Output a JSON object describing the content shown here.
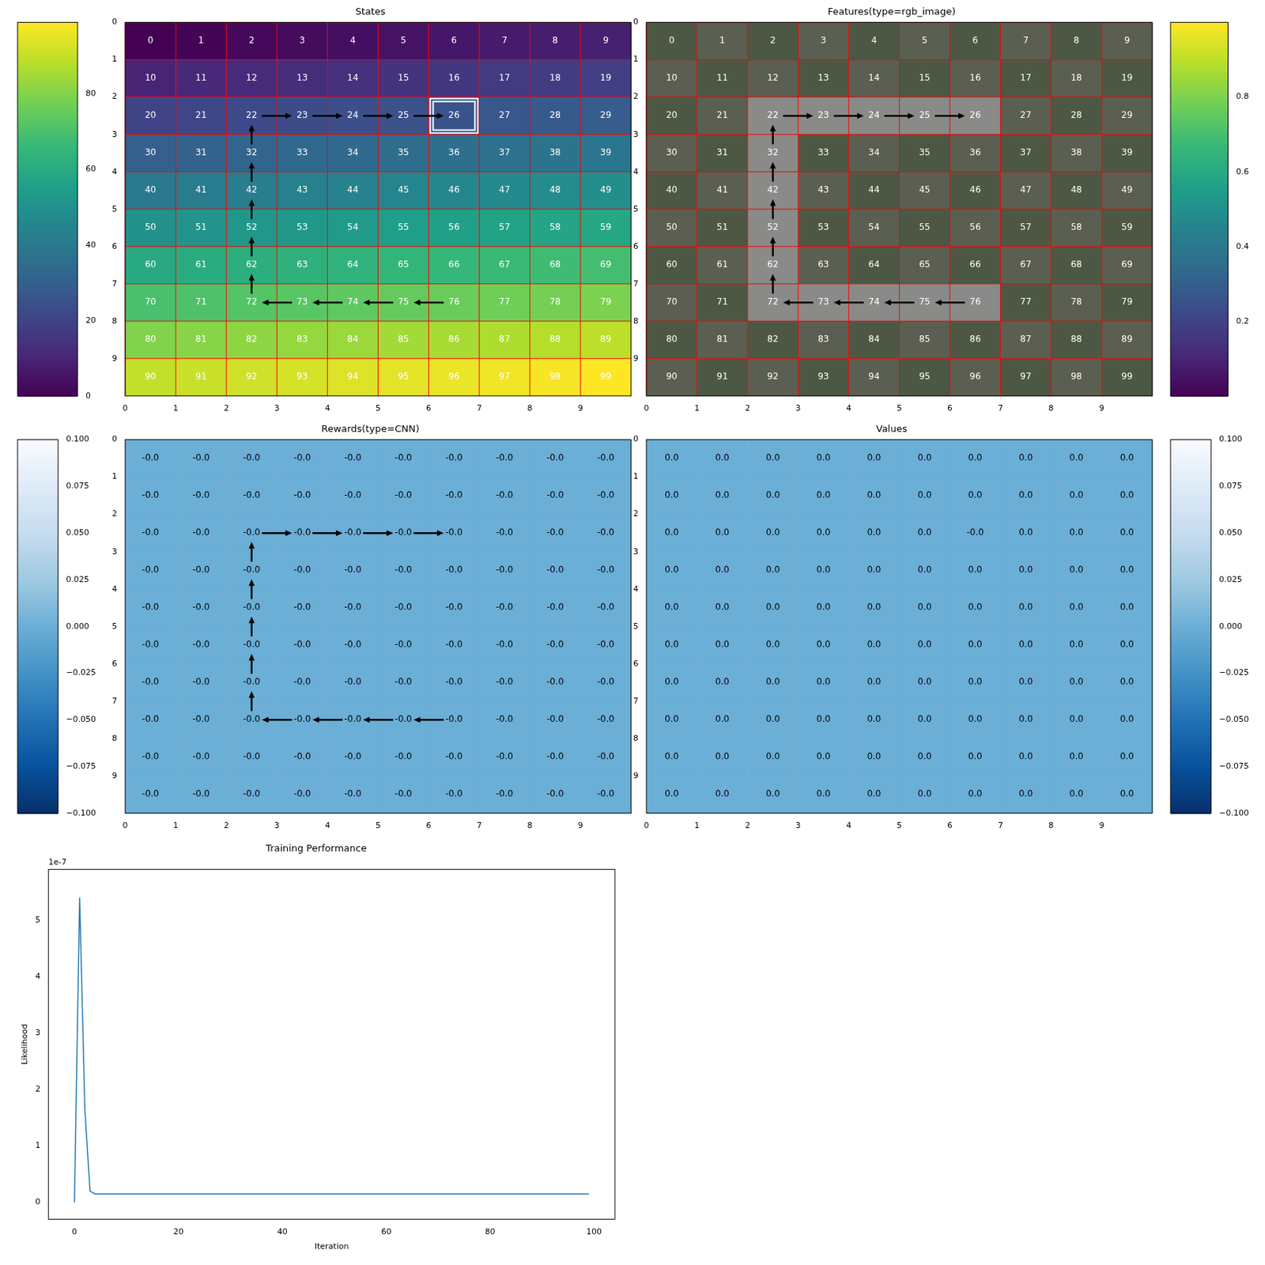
{
  "chart_data": [
    {
      "type": "heatmap",
      "title": "States",
      "color": "viridis",
      "cells": [
        [
          0,
          1,
          2,
          3,
          4,
          5,
          6,
          7,
          8,
          9
        ],
        [
          10,
          11,
          12,
          13,
          14,
          15,
          16,
          17,
          18,
          19
        ],
        [
          20,
          21,
          22,
          23,
          24,
          25,
          26,
          27,
          28,
          29
        ],
        [
          30,
          31,
          32,
          33,
          34,
          35,
          36,
          37,
          38,
          39
        ],
        [
          40,
          41,
          42,
          43,
          44,
          45,
          46,
          47,
          48,
          49
        ],
        [
          50,
          51,
          52,
          53,
          54,
          55,
          56,
          57,
          58,
          59
        ],
        [
          60,
          61,
          62,
          63,
          64,
          65,
          66,
          67,
          68,
          69
        ],
        [
          70,
          71,
          72,
          73,
          74,
          75,
          76,
          77,
          78,
          79
        ],
        [
          80,
          81,
          82,
          83,
          84,
          85,
          86,
          87,
          88,
          89
        ],
        [
          90,
          91,
          92,
          93,
          94,
          95,
          96,
          97,
          98,
          99
        ]
      ],
      "xlim": [
        0,
        10
      ],
      "ylim": [
        10,
        0
      ],
      "xticks": [
        0,
        1,
        2,
        3,
        4,
        5,
        6,
        7,
        8,
        9
      ],
      "yticks": [
        0,
        1,
        2,
        3,
        4,
        5,
        6,
        7,
        8,
        9
      ],
      "grid": true,
      "trajectory": [
        76,
        75,
        74,
        73,
        72,
        62,
        52,
        42,
        32,
        22,
        23,
        24,
        25,
        26
      ],
      "highlight": 26,
      "colorbar": {
        "range": [
          0,
          99
        ],
        "ticks": [
          0,
          20,
          40,
          60,
          80
        ]
      }
    },
    {
      "type": "image",
      "title": "Features(type=rgb_image)",
      "color": "viridis",
      "cell_labels": [
        [
          0,
          1,
          2,
          3,
          4,
          5,
          6,
          7,
          8,
          9
        ],
        [
          10,
          11,
          12,
          13,
          14,
          15,
          16,
          17,
          18,
          19
        ],
        [
          20,
          21,
          22,
          23,
          24,
          25,
          26,
          27,
          28,
          29
        ],
        [
          30,
          31,
          32,
          33,
          34,
          35,
          36,
          37,
          38,
          39
        ],
        [
          40,
          41,
          42,
          43,
          44,
          45,
          46,
          47,
          48,
          49
        ],
        [
          50,
          51,
          52,
          53,
          54,
          55,
          56,
          57,
          58,
          59
        ],
        [
          60,
          61,
          62,
          63,
          64,
          65,
          66,
          67,
          68,
          69
        ],
        [
          70,
          71,
          72,
          73,
          74,
          75,
          76,
          77,
          78,
          79
        ],
        [
          80,
          81,
          82,
          83,
          84,
          85,
          86,
          87,
          88,
          89
        ],
        [
          90,
          91,
          92,
          93,
          94,
          95,
          96,
          97,
          98,
          99
        ]
      ],
      "xlim": [
        0,
        10
      ],
      "ylim": [
        10,
        0
      ],
      "xticks": [
        0,
        1,
        2,
        3,
        4,
        5,
        6,
        7,
        8,
        9
      ],
      "yticks": [
        0,
        1,
        2,
        3,
        4,
        5,
        6,
        7,
        8,
        9
      ],
      "grid": true,
      "trajectory": [
        76,
        75,
        74,
        73,
        72,
        62,
        52,
        42,
        32,
        22,
        23,
        24,
        25,
        26
      ],
      "colorbar": {
        "range": [
          0,
          1
        ],
        "ticks": [
          0.2,
          0.4,
          0.6,
          0.8
        ]
      }
    },
    {
      "type": "heatmap",
      "title": "Rewards(type=CNN)",
      "color": "Blues",
      "cells": [
        [
          0,
          0,
          0,
          0,
          0,
          0,
          0,
          0,
          0,
          0
        ],
        [
          0,
          0,
          0,
          0,
          0,
          0,
          0,
          0,
          0,
          0
        ],
        [
          0,
          0,
          0,
          0,
          0,
          0,
          0,
          0,
          0,
          0
        ],
        [
          0,
          0,
          0,
          0,
          0,
          0,
          0,
          0,
          0,
          0
        ],
        [
          0,
          0,
          0,
          0,
          0,
          0,
          0,
          0,
          0,
          0
        ],
        [
          0,
          0,
          0,
          0,
          0,
          0,
          0,
          0,
          0,
          0
        ],
        [
          0,
          0,
          0,
          0,
          0,
          0,
          0,
          0,
          0,
          0
        ],
        [
          0,
          0,
          0,
          0,
          0,
          0,
          0,
          0,
          0,
          0
        ],
        [
          0,
          0,
          0,
          0,
          0,
          0,
          0,
          0,
          0,
          0
        ],
        [
          0,
          0,
          0,
          0,
          0,
          0,
          0,
          0,
          0,
          0
        ]
      ],
      "cell_labels": [
        [
          "-0.0",
          "-0.0",
          "-0.0",
          "-0.0",
          "-0.0",
          "-0.0",
          "-0.0",
          "-0.0",
          "-0.0",
          "-0.0"
        ],
        [
          "-0.0",
          "-0.0",
          "-0.0",
          "-0.0",
          "-0.0",
          "-0.0",
          "-0.0",
          "-0.0",
          "-0.0",
          "-0.0"
        ],
        [
          "-0.0",
          "-0.0",
          "-0.0",
          "-0.0",
          "-0.0",
          "-0.0",
          "-0.0",
          "-0.0",
          "-0.0",
          "-0.0"
        ],
        [
          "-0.0",
          "-0.0",
          "-0.0",
          "-0.0",
          "-0.0",
          "-0.0",
          "-0.0",
          "-0.0",
          "-0.0",
          "-0.0"
        ],
        [
          "-0.0",
          "-0.0",
          "-0.0",
          "-0.0",
          "-0.0",
          "-0.0",
          "-0.0",
          "-0.0",
          "-0.0",
          "-0.0"
        ],
        [
          "-0.0",
          "-0.0",
          "-0.0",
          "-0.0",
          "-0.0",
          "-0.0",
          "-0.0",
          "-0.0",
          "-0.0",
          "-0.0"
        ],
        [
          "-0.0",
          "-0.0",
          "-0.0",
          "-0.0",
          "-0.0",
          "-0.0",
          "-0.0",
          "-0.0",
          "-0.0",
          "-0.0"
        ],
        [
          "-0.0",
          "-0.0",
          "-0.0",
          "-0.0",
          "-0.0",
          "-0.0",
          "-0.0",
          "-0.0",
          "-0.0",
          "-0.0"
        ],
        [
          "-0.0",
          "-0.0",
          "-0.0",
          "-0.0",
          "-0.0",
          "-0.0",
          "-0.0",
          "-0.0",
          "-0.0",
          "-0.0"
        ],
        [
          "-0.0",
          "-0.0",
          "-0.0",
          "-0.0",
          "-0.0",
          "-0.0",
          "-0.0",
          "-0.0",
          "-0.0",
          "-0.0"
        ]
      ],
      "xlim": [
        0,
        10
      ],
      "ylim": [
        10,
        0
      ],
      "xticks": [
        0,
        1,
        2,
        3,
        4,
        5,
        6,
        7,
        8,
        9
      ],
      "yticks": [
        0,
        1,
        2,
        3,
        4,
        5,
        6,
        7,
        8,
        9
      ],
      "grid": false,
      "trajectory": [
        76,
        75,
        74,
        73,
        72,
        62,
        52,
        42,
        32,
        22,
        23,
        24,
        25,
        26
      ],
      "colorbar": {
        "range": [
          -0.1,
          0.1
        ],
        "ticks": [
          {
            "value": -0.1,
            "label": "−0.100"
          },
          {
            "value": -0.075,
            "label": "−0.075"
          },
          {
            "value": -0.05,
            "label": "−0.050"
          },
          {
            "value": -0.025,
            "label": "−0.025"
          },
          {
            "value": 0,
            "label": "0.000"
          },
          {
            "value": 0.025,
            "label": "0.025"
          },
          {
            "value": 0.05,
            "label": "0.050"
          },
          {
            "value": 0.075,
            "label": "0.075"
          },
          {
            "value": 0.1,
            "label": "0.100"
          }
        ]
      }
    },
    {
      "type": "heatmap",
      "title": "Values",
      "color": "Blues",
      "cells": [
        [
          0,
          0,
          0,
          0,
          0,
          0,
          0,
          0,
          0,
          0
        ],
        [
          0,
          0,
          0,
          0,
          0,
          0,
          0,
          0,
          0,
          0
        ],
        [
          0,
          0,
          0,
          0,
          0,
          0,
          0,
          0,
          0,
          0
        ],
        [
          0,
          0,
          0,
          0,
          0,
          0,
          0,
          0,
          0,
          0
        ],
        [
          0,
          0,
          0,
          0,
          0,
          0,
          0,
          0,
          0,
          0
        ],
        [
          0,
          0,
          0,
          0,
          0,
          0,
          0,
          0,
          0,
          0
        ],
        [
          0,
          0,
          0,
          0,
          0,
          0,
          0,
          0,
          0,
          0
        ],
        [
          0,
          0,
          0,
          0,
          0,
          0,
          0,
          0,
          0,
          0
        ],
        [
          0,
          0,
          0,
          0,
          0,
          0,
          0,
          0,
          0,
          0
        ],
        [
          0,
          0,
          0,
          0,
          0,
          0,
          0,
          0,
          0,
          0
        ]
      ],
      "cell_labels": [
        [
          "0.0",
          "0.0",
          "0.0",
          "0.0",
          "0.0",
          "0.0",
          "0.0",
          "0.0",
          "0.0",
          "0.0"
        ],
        [
          "0.0",
          "0.0",
          "0.0",
          "0.0",
          "0.0",
          "0.0",
          "0.0",
          "0.0",
          "0.0",
          "0.0"
        ],
        [
          "0.0",
          "0.0",
          "0.0",
          "0.0",
          "0.0",
          "0.0",
          "-0.0",
          "0.0",
          "0.0",
          "0.0"
        ],
        [
          "0.0",
          "0.0",
          "0.0",
          "0.0",
          "0.0",
          "0.0",
          "0.0",
          "0.0",
          "0.0",
          "0.0"
        ],
        [
          "0.0",
          "0.0",
          "0.0",
          "0.0",
          "0.0",
          "0.0",
          "0.0",
          "0.0",
          "0.0",
          "0.0"
        ],
        [
          "0.0",
          "0.0",
          "0.0",
          "0.0",
          "0.0",
          "0.0",
          "0.0",
          "0.0",
          "0.0",
          "0.0"
        ],
        [
          "0.0",
          "0.0",
          "0.0",
          "0.0",
          "0.0",
          "0.0",
          "0.0",
          "0.0",
          "0.0",
          "0.0"
        ],
        [
          "0.0",
          "0.0",
          "0.0",
          "0.0",
          "0.0",
          "0.0",
          "0.0",
          "0.0",
          "0.0",
          "0.0"
        ],
        [
          "0.0",
          "0.0",
          "0.0",
          "0.0",
          "0.0",
          "0.0",
          "0.0",
          "0.0",
          "0.0",
          "0.0"
        ],
        [
          "0.0",
          "0.0",
          "0.0",
          "0.0",
          "0.0",
          "0.0",
          "0.0",
          "0.0",
          "0.0",
          "0.0"
        ]
      ],
      "xlim": [
        0,
        10
      ],
      "ylim": [
        10,
        0
      ],
      "xticks": [
        0,
        1,
        2,
        3,
        4,
        5,
        6,
        7,
        8,
        9
      ],
      "yticks": [
        0,
        1,
        2,
        3,
        4,
        5,
        6,
        7,
        8,
        9
      ],
      "grid": false,
      "colorbar": {
        "range": [
          -0.1,
          0.1
        ],
        "ticks": [
          {
            "value": -0.1,
            "label": "−0.100"
          },
          {
            "value": -0.075,
            "label": "−0.075"
          },
          {
            "value": -0.05,
            "label": "−0.050"
          },
          {
            "value": -0.025,
            "label": "−0.025"
          },
          {
            "value": 0,
            "label": "0.000"
          },
          {
            "value": 0.025,
            "label": "0.025"
          },
          {
            "value": 0.05,
            "label": "0.050"
          },
          {
            "value": 0.075,
            "label": "0.075"
          },
          {
            "value": 0.1,
            "label": "0.100"
          }
        ]
      }
    },
    {
      "type": "line",
      "title": "Training Performance",
      "xlabel": "Iteration",
      "ylabel": "Likelihood",
      "annotation": "1e-7",
      "color": "#1f77b4",
      "x": [
        0,
        1,
        2,
        3,
        4,
        5,
        6,
        7,
        8,
        9,
        10,
        11,
        12,
        13,
        14,
        15,
        16,
        17,
        18,
        19,
        20,
        21,
        22,
        23,
        24,
        25,
        26,
        27,
        28,
        29,
        30,
        31,
        32,
        33,
        34,
        35,
        36,
        37,
        38,
        39,
        40,
        41,
        42,
        43,
        44,
        45,
        46,
        47,
        48,
        49,
        50,
        51,
        52,
        53,
        54,
        55,
        56,
        57,
        58,
        59,
        60,
        61,
        62,
        63,
        64,
        65,
        66,
        67,
        68,
        69,
        70,
        71,
        72,
        73,
        74,
        75,
        76,
        77,
        78,
        79,
        80,
        81,
        82,
        83,
        84,
        85,
        86,
        87,
        88,
        89,
        90,
        91,
        92,
        93,
        94,
        95,
        96,
        97,
        98,
        99
      ],
      "values": [
        0,
        5.4,
        1.65,
        0.2,
        0.15,
        0.15,
        0.15,
        0.15,
        0.15,
        0.15,
        0.15,
        0.15,
        0.15,
        0.15,
        0.15,
        0.15,
        0.15,
        0.15,
        0.15,
        0.15,
        0.15,
        0.15,
        0.15,
        0.15,
        0.15,
        0.15,
        0.15,
        0.15,
        0.15,
        0.15,
        0.15,
        0.15,
        0.15,
        0.15,
        0.15,
        0.15,
        0.15,
        0.15,
        0.15,
        0.15,
        0.15,
        0.15,
        0.15,
        0.15,
        0.15,
        0.15,
        0.15,
        0.15,
        0.15,
        0.15,
        0.15,
        0.15,
        0.15,
        0.15,
        0.15,
        0.15,
        0.15,
        0.15,
        0.15,
        0.15,
        0.15,
        0.15,
        0.15,
        0.15,
        0.15,
        0.15,
        0.15,
        0.15,
        0.15,
        0.15,
        0.15,
        0.15,
        0.15,
        0.15,
        0.15,
        0.15,
        0.15,
        0.15,
        0.15,
        0.15,
        0.15,
        0.15,
        0.15,
        0.15,
        0.15,
        0.15,
        0.15,
        0.15,
        0.15,
        0.15,
        0.15,
        0.15,
        0.15,
        0.15,
        0.15,
        0.15,
        0.15,
        0.15,
        0.15,
        0.15
      ],
      "xlim": [
        -5,
        104
      ],
      "ylim": [
        -0.3,
        5.9
      ],
      "xticks": [
        0,
        20,
        40,
        60,
        80,
        100
      ],
      "yticks": [
        0,
        1,
        2,
        3,
        4,
        5
      ],
      "grid": false
    }
  ]
}
